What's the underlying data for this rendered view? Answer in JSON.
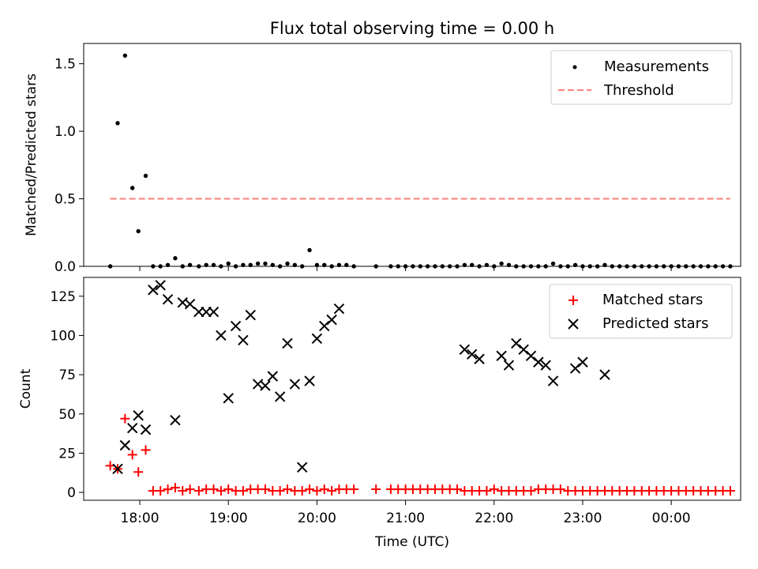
{
  "title": "Flux total observing time = 0.00 h",
  "colors": {
    "measurement": "#000000",
    "threshold": "#ff8080",
    "matched": "#ff0000",
    "predicted": "#000000"
  },
  "chart_data": [
    {
      "type": "scatter",
      "panel": "top",
      "ylabel": "Matched/Predicted stars",
      "ylim": [
        0,
        1.65
      ],
      "yticks": [
        0.0,
        0.5,
        1.0,
        1.5
      ],
      "ytick_labels": [
        "0.0",
        "0.5",
        "1.0",
        "1.5"
      ],
      "xlim": [
        "17:22",
        "00:47"
      ],
      "xticks": [
        "18:00",
        "19:00",
        "20:00",
        "21:00",
        "22:00",
        "23:00",
        "00:00"
      ],
      "legend_position": "top-right",
      "series": [
        {
          "name": "Measurements",
          "marker": "dot",
          "points": [
            [
              "17:40",
              0.0
            ],
            [
              "17:45",
              1.06
            ],
            [
              "17:50",
              1.56
            ],
            [
              "17:55",
              0.58
            ],
            [
              "17:59",
              0.26
            ],
            [
              "18:04",
              0.67
            ],
            [
              "18:09",
              0.0
            ],
            [
              "18:14",
              0.0
            ],
            [
              "18:19",
              0.01
            ],
            [
              "18:24",
              0.06
            ],
            [
              "18:29",
              0.0
            ],
            [
              "18:34",
              0.01
            ],
            [
              "18:40",
              0.0
            ],
            [
              "18:45",
              0.01
            ],
            [
              "18:50",
              0.01
            ],
            [
              "18:55",
              0.0
            ],
            [
              "19:00",
              0.02
            ],
            [
              "19:05",
              0.0
            ],
            [
              "19:10",
              0.01
            ],
            [
              "19:15",
              0.01
            ],
            [
              "19:20",
              0.02
            ],
            [
              "19:25",
              0.02
            ],
            [
              "19:30",
              0.01
            ],
            [
              "19:35",
              0.0
            ],
            [
              "19:40",
              0.02
            ],
            [
              "19:45",
              0.01
            ],
            [
              "19:50",
              0.0
            ],
            [
              "19:55",
              0.12
            ],
            [
              "20:00",
              0.01
            ],
            [
              "20:05",
              0.01
            ],
            [
              "20:10",
              0.0
            ],
            [
              "20:15",
              0.01
            ],
            [
              "20:20",
              0.01
            ],
            [
              "20:25",
              0.0
            ],
            [
              "20:40",
              0.0
            ],
            [
              "20:50",
              0.0
            ],
            [
              "20:55",
              0.0
            ],
            [
              "21:00",
              0.0
            ],
            [
              "21:05",
              0.0
            ],
            [
              "21:10",
              0.0
            ],
            [
              "21:15",
              0.0
            ],
            [
              "21:20",
              0.0
            ],
            [
              "21:25",
              0.0
            ],
            [
              "21:30",
              0.0
            ],
            [
              "21:35",
              0.0
            ],
            [
              "21:40",
              0.01
            ],
            [
              "21:45",
              0.01
            ],
            [
              "21:50",
              0.0
            ],
            [
              "21:55",
              0.01
            ],
            [
              "22:00",
              0.0
            ],
            [
              "22:05",
              0.02
            ],
            [
              "22:10",
              0.01
            ],
            [
              "22:15",
              0.0
            ],
            [
              "22:20",
              0.0
            ],
            [
              "22:25",
              0.0
            ],
            [
              "22:30",
              0.0
            ],
            [
              "22:35",
              0.0
            ],
            [
              "22:40",
              0.02
            ],
            [
              "22:45",
              0.0
            ],
            [
              "22:50",
              0.0
            ],
            [
              "22:55",
              0.01
            ],
            [
              "23:00",
              0.0
            ],
            [
              "23:05",
              0.0
            ],
            [
              "23:10",
              0.0
            ],
            [
              "23:15",
              0.01
            ],
            [
              "23:20",
              0.0
            ],
            [
              "23:25",
              0.0
            ],
            [
              "23:30",
              0.0
            ],
            [
              "23:35",
              0.0
            ],
            [
              "23:40",
              0.0
            ],
            [
              "23:45",
              0.0
            ],
            [
              "23:50",
              0.0
            ],
            [
              "23:55",
              0.0
            ],
            [
              "00:00",
              0.0
            ],
            [
              "00:05",
              0.0
            ],
            [
              "00:10",
              0.0
            ],
            [
              "00:15",
              0.0
            ],
            [
              "00:20",
              0.0
            ],
            [
              "00:25",
              0.0
            ],
            [
              "00:30",
              0.0
            ],
            [
              "00:35",
              0.0
            ],
            [
              "00:40",
              0.0
            ]
          ]
        },
        {
          "name": "Threshold",
          "marker": "dashed-line",
          "points": [
            [
              "17:40",
              0.5
            ],
            [
              "00:40",
              0.5
            ]
          ]
        }
      ]
    },
    {
      "type": "scatter",
      "panel": "bottom",
      "ylabel": "Count",
      "xlabel": "Time (UTC)",
      "ylim": [
        -5,
        137
      ],
      "yticks": [
        0,
        25,
        50,
        75,
        100,
        125
      ],
      "ytick_labels": [
        "0",
        "25",
        "50",
        "75",
        "100",
        "125"
      ],
      "xlim": [
        "17:22",
        "00:47"
      ],
      "xticks": [
        "18:00",
        "19:00",
        "20:00",
        "21:00",
        "22:00",
        "23:00",
        "00:00"
      ],
      "legend_position": "top-right",
      "series": [
        {
          "name": "Matched stars",
          "marker": "plus",
          "points": [
            [
              "17:40",
              17
            ],
            [
              "17:45",
              15
            ],
            [
              "17:50",
              47
            ],
            [
              "17:55",
              24
            ],
            [
              "17:59",
              13
            ],
            [
              "18:04",
              27
            ],
            [
              "18:09",
              1
            ],
            [
              "18:14",
              1
            ],
            [
              "18:19",
              2
            ],
            [
              "18:24",
              3
            ],
            [
              "18:29",
              1
            ],
            [
              "18:34",
              2
            ],
            [
              "18:40",
              1
            ],
            [
              "18:45",
              2
            ],
            [
              "18:50",
              2
            ],
            [
              "18:55",
              1
            ],
            [
              "19:00",
              2
            ],
            [
              "19:05",
              1
            ],
            [
              "19:10",
              1
            ],
            [
              "19:15",
              2
            ],
            [
              "19:20",
              2
            ],
            [
              "19:25",
              2
            ],
            [
              "19:30",
              1
            ],
            [
              "19:35",
              1
            ],
            [
              "19:40",
              2
            ],
            [
              "19:45",
              1
            ],
            [
              "19:50",
              1
            ],
            [
              "19:55",
              2
            ],
            [
              "20:00",
              1
            ],
            [
              "20:05",
              2
            ],
            [
              "20:10",
              1
            ],
            [
              "20:15",
              2
            ],
            [
              "20:20",
              2
            ],
            [
              "20:25",
              2
            ],
            [
              "20:40",
              2
            ],
            [
              "20:50",
              2
            ],
            [
              "20:55",
              2
            ],
            [
              "21:00",
              2
            ],
            [
              "21:05",
              2
            ],
            [
              "21:10",
              2
            ],
            [
              "21:15",
              2
            ],
            [
              "21:20",
              2
            ],
            [
              "21:25",
              2
            ],
            [
              "21:30",
              2
            ],
            [
              "21:35",
              2
            ],
            [
              "21:40",
              1
            ],
            [
              "21:45",
              1
            ],
            [
              "21:50",
              1
            ],
            [
              "21:55",
              1
            ],
            [
              "22:00",
              2
            ],
            [
              "22:05",
              1
            ],
            [
              "22:10",
              1
            ],
            [
              "22:15",
              1
            ],
            [
              "22:20",
              1
            ],
            [
              "22:25",
              1
            ],
            [
              "22:30",
              2
            ],
            [
              "22:35",
              2
            ],
            [
              "22:40",
              2
            ],
            [
              "22:45",
              2
            ],
            [
              "22:50",
              1
            ],
            [
              "22:55",
              1
            ],
            [
              "23:00",
              1
            ],
            [
              "23:05",
              1
            ],
            [
              "23:10",
              1
            ],
            [
              "23:15",
              1
            ],
            [
              "23:20",
              1
            ],
            [
              "23:25",
              1
            ],
            [
              "23:30",
              1
            ],
            [
              "23:35",
              1
            ],
            [
              "23:40",
              1
            ],
            [
              "23:45",
              1
            ],
            [
              "23:50",
              1
            ],
            [
              "23:55",
              1
            ],
            [
              "00:00",
              1
            ],
            [
              "00:05",
              1
            ],
            [
              "00:10",
              1
            ],
            [
              "00:15",
              1
            ],
            [
              "00:20",
              1
            ],
            [
              "00:25",
              1
            ],
            [
              "00:30",
              1
            ],
            [
              "00:35",
              1
            ],
            [
              "00:40",
              1
            ]
          ]
        },
        {
          "name": "Predicted stars",
          "marker": "x",
          "points": [
            [
              "17:45",
              15
            ],
            [
              "17:50",
              30
            ],
            [
              "17:55",
              41
            ],
            [
              "17:59",
              49
            ],
            [
              "18:04",
              40
            ],
            [
              "18:09",
              129
            ],
            [
              "18:14",
              132
            ],
            [
              "18:19",
              123
            ],
            [
              "18:24",
              46
            ],
            [
              "18:29",
              121
            ],
            [
              "18:34",
              120
            ],
            [
              "18:40",
              115
            ],
            [
              "18:45",
              115
            ],
            [
              "18:50",
              115
            ],
            [
              "18:55",
              100
            ],
            [
              "19:00",
              60
            ],
            [
              "19:05",
              106
            ],
            [
              "19:10",
              97
            ],
            [
              "19:15",
              113
            ],
            [
              "19:20",
              69
            ],
            [
              "19:25",
              68
            ],
            [
              "19:30",
              74
            ],
            [
              "19:35",
              61
            ],
            [
              "19:40",
              95
            ],
            [
              "19:45",
              69
            ],
            [
              "19:50",
              16
            ],
            [
              "19:55",
              71
            ],
            [
              "20:00",
              98
            ],
            [
              "20:05",
              106
            ],
            [
              "20:10",
              110
            ],
            [
              "20:15",
              117
            ],
            [
              "21:40",
              91
            ],
            [
              "21:45",
              88
            ],
            [
              "21:50",
              85
            ],
            [
              "22:05",
              87
            ],
            [
              "22:10",
              81
            ],
            [
              "22:15",
              95
            ],
            [
              "22:20",
              91
            ],
            [
              "22:25",
              87
            ],
            [
              "22:30",
              83
            ],
            [
              "22:35",
              81
            ],
            [
              "22:40",
              71
            ],
            [
              "22:55",
              79
            ],
            [
              "23:00",
              83
            ],
            [
              "23:15",
              75
            ]
          ]
        }
      ]
    }
  ]
}
